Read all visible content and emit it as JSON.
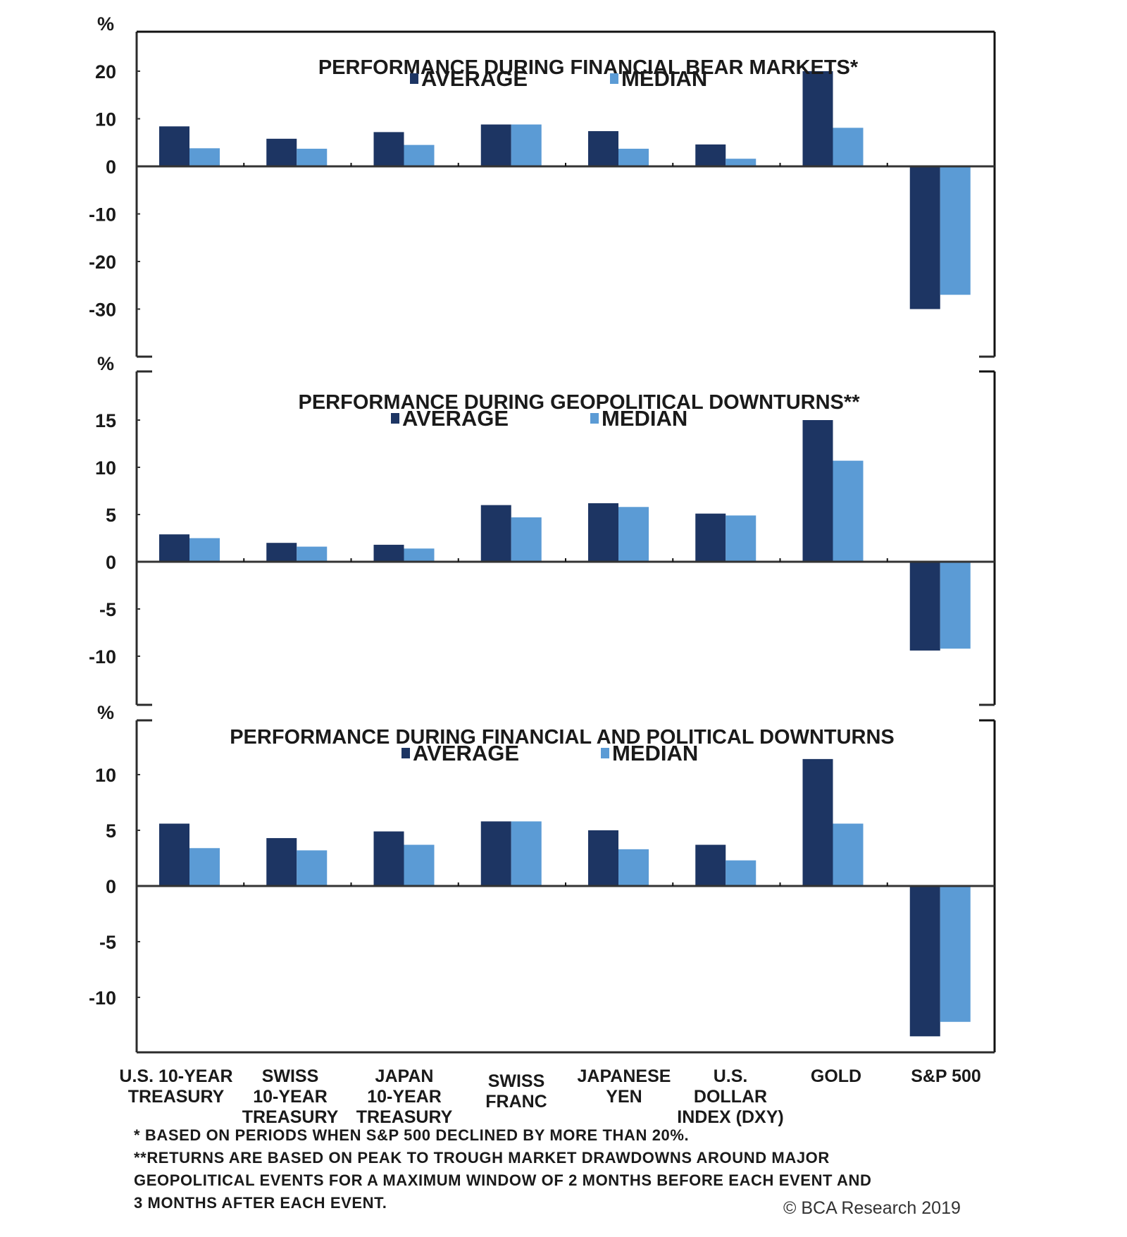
{
  "chart_data": [
    {
      "type": "bar",
      "title": "PERFORMANCE DURING FINANCIAL BEAR MARKETS*",
      "ylabel": "%",
      "xlabel": "",
      "ylim": [
        -40,
        20
      ],
      "yticks": [
        20,
        10,
        0,
        -10,
        -20,
        -30
      ],
      "grid": false,
      "legend": "top-center",
      "categories": [
        "U.S. 10-YEAR TREASURY",
        "SWISS 10-YEAR TREASURY",
        "JAPAN 10-YEAR TREASURY",
        "SWISS FRANC",
        "JAPANESE YEN",
        "U.S. DOLLAR INDEX (DXY)",
        "GOLD",
        "S&P 500"
      ],
      "series": [
        {
          "name": "AVERAGE",
          "color": "#1d3563",
          "values": [
            8.4,
            5.8,
            7.2,
            8.8,
            7.4,
            4.6,
            20.0,
            -30.0
          ]
        },
        {
          "name": "MEDIAN",
          "color": "#5b9bd5",
          "values": [
            3.8,
            3.7,
            4.5,
            8.8,
            3.7,
            1.6,
            8.1,
            -27.0
          ]
        }
      ]
    },
    {
      "type": "bar",
      "title": "PERFORMANCE DURING GEOPOLITICAL DOWNTURNS**",
      "ylabel": "%",
      "xlabel": "",
      "ylim": [
        -15,
        20
      ],
      "yticks": [
        15,
        10,
        5,
        0,
        -5,
        -10
      ],
      "grid": false,
      "legend": "top-center",
      "categories": [
        "U.S. 10-YEAR TREASURY",
        "SWISS 10-YEAR TREASURY",
        "JAPAN 10-YEAR TREASURY",
        "SWISS FRANC",
        "JAPANESE YEN",
        "U.S. DOLLAR INDEX (DXY)",
        "GOLD",
        "S&P 500"
      ],
      "series": [
        {
          "name": "AVERAGE",
          "color": "#1d3563",
          "values": [
            2.9,
            2.0,
            1.8,
            6.0,
            6.2,
            5.1,
            15.0,
            -9.4
          ]
        },
        {
          "name": "MEDIAN",
          "color": "#5b9bd5",
          "values": [
            2.5,
            1.6,
            1.4,
            4.7,
            5.8,
            4.9,
            10.7,
            -9.2
          ]
        }
      ]
    },
    {
      "type": "bar",
      "title": "PERFORMANCE DURING FINANCIAL AND POLITICAL DOWNTURNS",
      "ylabel": "%",
      "xlabel": "",
      "ylim": [
        -15,
        15
      ],
      "yticks": [
        10,
        5,
        0,
        -5,
        -10
      ],
      "grid": false,
      "legend": "top-center",
      "categories": [
        "U.S. 10-YEAR TREASURY",
        "SWISS 10-YEAR TREASURY",
        "JAPAN 10-YEAR TREASURY",
        "SWISS FRANC",
        "JAPANESE YEN",
        "U.S. DOLLAR INDEX (DXY)",
        "GOLD",
        "S&P 500"
      ],
      "series": [
        {
          "name": "AVERAGE",
          "color": "#1d3563",
          "values": [
            5.6,
            4.3,
            4.9,
            5.8,
            5.0,
            3.7,
            11.4,
            -13.5
          ]
        },
        {
          "name": "MEDIAN",
          "color": "#5b9bd5",
          "values": [
            3.4,
            3.2,
            3.7,
            5.8,
            3.3,
            2.3,
            5.6,
            -12.2
          ]
        }
      ]
    }
  ],
  "x_axis_labels": [
    [
      "U.S. 10-YEAR",
      "TREASURY"
    ],
    [
      "SWISS",
      "10-YEAR",
      "TREASURY"
    ],
    [
      "JAPAN",
      "10-YEAR",
      "TREASURY"
    ],
    [
      "SWISS",
      "FRANC"
    ],
    [
      "JAPANESE",
      "YEN"
    ],
    [
      "U.S.",
      "DOLLAR",
      "INDEX (DXY)"
    ],
    [
      "GOLD"
    ],
    [
      "S&P 500"
    ]
  ],
  "footnotes": {
    "note1": "* BASED ON PERIODS WHEN S&P 500 DECLINED BY MORE THAN 20%.",
    "note2_line1": "**RETURNS ARE BASED ON PEAK TO TROUGH MARKET DRAWDOWNS AROUND MAJOR",
    "note2_line2": "GEOPOLITICAL EVENTS FOR A MAXIMUM WINDOW OF 2 MONTHS BEFORE EACH EVENT AND",
    "note2_line3": "3 MONTHS AFTER EACH EVENT."
  },
  "copyright": "© BCA Research 2019"
}
